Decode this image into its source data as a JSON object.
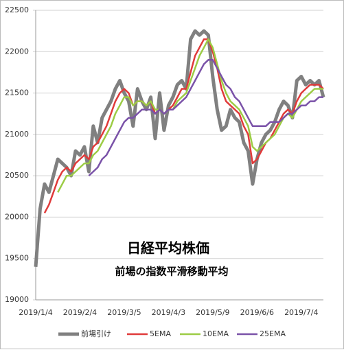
{
  "chart_data": {
    "type": "line",
    "title": "日経平均株価",
    "subtitle": "前場の指数平滑移動平均",
    "categories": [
      "2019/1/4",
      null,
      null,
      null,
      null,
      null,
      null,
      null,
      null,
      null,
      "2019/2/4",
      null,
      null,
      null,
      null,
      null,
      null,
      null,
      null,
      null,
      "2019/3/5",
      null,
      null,
      null,
      null,
      null,
      null,
      null,
      null,
      null,
      "2019/4/3",
      null,
      null,
      null,
      null,
      null,
      null,
      null,
      null,
      null,
      "2019/5/9",
      null,
      null,
      null,
      null,
      null,
      null,
      null,
      null,
      null,
      "2019/6/6",
      null,
      null,
      null,
      null,
      null,
      null,
      null,
      null,
      null,
      "2019/7/4",
      null,
      null,
      null,
      null,
      null
    ],
    "ylim": [
      19000,
      22500
    ],
    "yticks": [
      19000,
      19500,
      20000,
      20500,
      21000,
      21500,
      22000,
      22500
    ],
    "grid": true,
    "series": [
      {
        "name": "前場引け",
        "color": "#808080",
        "values": [
          19400,
          20100,
          20400,
          20300,
          20500,
          20700,
          20650,
          20600,
          20500,
          20800,
          20750,
          20850,
          20550,
          21100,
          20900,
          21200,
          21300,
          21400,
          21550,
          21650,
          21500,
          21400,
          21100,
          21550,
          21400,
          21300,
          21450,
          20950,
          21500,
          21050,
          21350,
          21450,
          21600,
          21650,
          21550,
          22150,
          22250,
          22200,
          22250,
          22200,
          21700,
          21300,
          21050,
          21100,
          21300,
          21200,
          21150,
          20900,
          20800,
          20400,
          20700,
          20900,
          21000,
          21050,
          21150,
          21300,
          21400,
          21350,
          21200,
          21650,
          21700,
          21600,
          21650,
          21600,
          21650,
          21450
        ]
      },
      {
        "name": "5EMA",
        "color": "#e03a3a",
        "values": [
          null,
          null,
          20050,
          20150,
          20300,
          20450,
          20550,
          20600,
          20550,
          20650,
          20700,
          20750,
          20700,
          20850,
          20900,
          21000,
          21100,
          21250,
          21400,
          21500,
          21550,
          21500,
          21350,
          21400,
          21400,
          21350,
          21400,
          21250,
          21300,
          21250,
          21300,
          21350,
          21450,
          21550,
          21550,
          21750,
          21950,
          22050,
          22150,
          22150,
          22000,
          21800,
          21550,
          21400,
          21350,
          21300,
          21250,
          21100,
          21000,
          20650,
          20700,
          20800,
          20900,
          20950,
          21050,
          21150,
          21250,
          21300,
          21250,
          21400,
          21500,
          21550,
          21600,
          21600,
          21600,
          21550
        ]
      },
      {
        "name": "10EMA",
        "color": "#9ccc45",
        "values": [
          null,
          null,
          null,
          null,
          null,
          20300,
          20400,
          20500,
          20500,
          20550,
          20600,
          20650,
          20650,
          20750,
          20800,
          20900,
          21000,
          21100,
          21250,
          21350,
          21450,
          21450,
          21350,
          21400,
          21400,
          21350,
          21400,
          21300,
          21300,
          21250,
          21300,
          21300,
          21400,
          21450,
          21500,
          21650,
          21800,
          21950,
          22050,
          22150,
          22050,
          21850,
          21650,
          21500,
          21400,
          21350,
          21300,
          21200,
          21100,
          20850,
          20800,
          20850,
          20900,
          20950,
          21000,
          21100,
          21200,
          21250,
          21200,
          21300,
          21400,
          21450,
          21500,
          21550,
          21550,
          21550
        ]
      },
      {
        "name": "25EMA",
        "color": "#7a52a8",
        "values": [
          null,
          null,
          null,
          null,
          null,
          null,
          null,
          null,
          null,
          null,
          null,
          null,
          20500,
          20550,
          20600,
          20700,
          20750,
          20850,
          20950,
          21050,
          21150,
          21200,
          21200,
          21250,
          21300,
          21300,
          21300,
          21250,
          21300,
          21250,
          21300,
          21300,
          21350,
          21400,
          21450,
          21550,
          21650,
          21750,
          21850,
          21900,
          21900,
          21800,
          21700,
          21600,
          21550,
          21450,
          21400,
          21300,
          21200,
          21100,
          21100,
          21100,
          21100,
          21150,
          21150,
          21150,
          21200,
          21250,
          21250,
          21300,
          21350,
          21350,
          21400,
          21400,
          21450,
          21450
        ]
      }
    ]
  }
}
